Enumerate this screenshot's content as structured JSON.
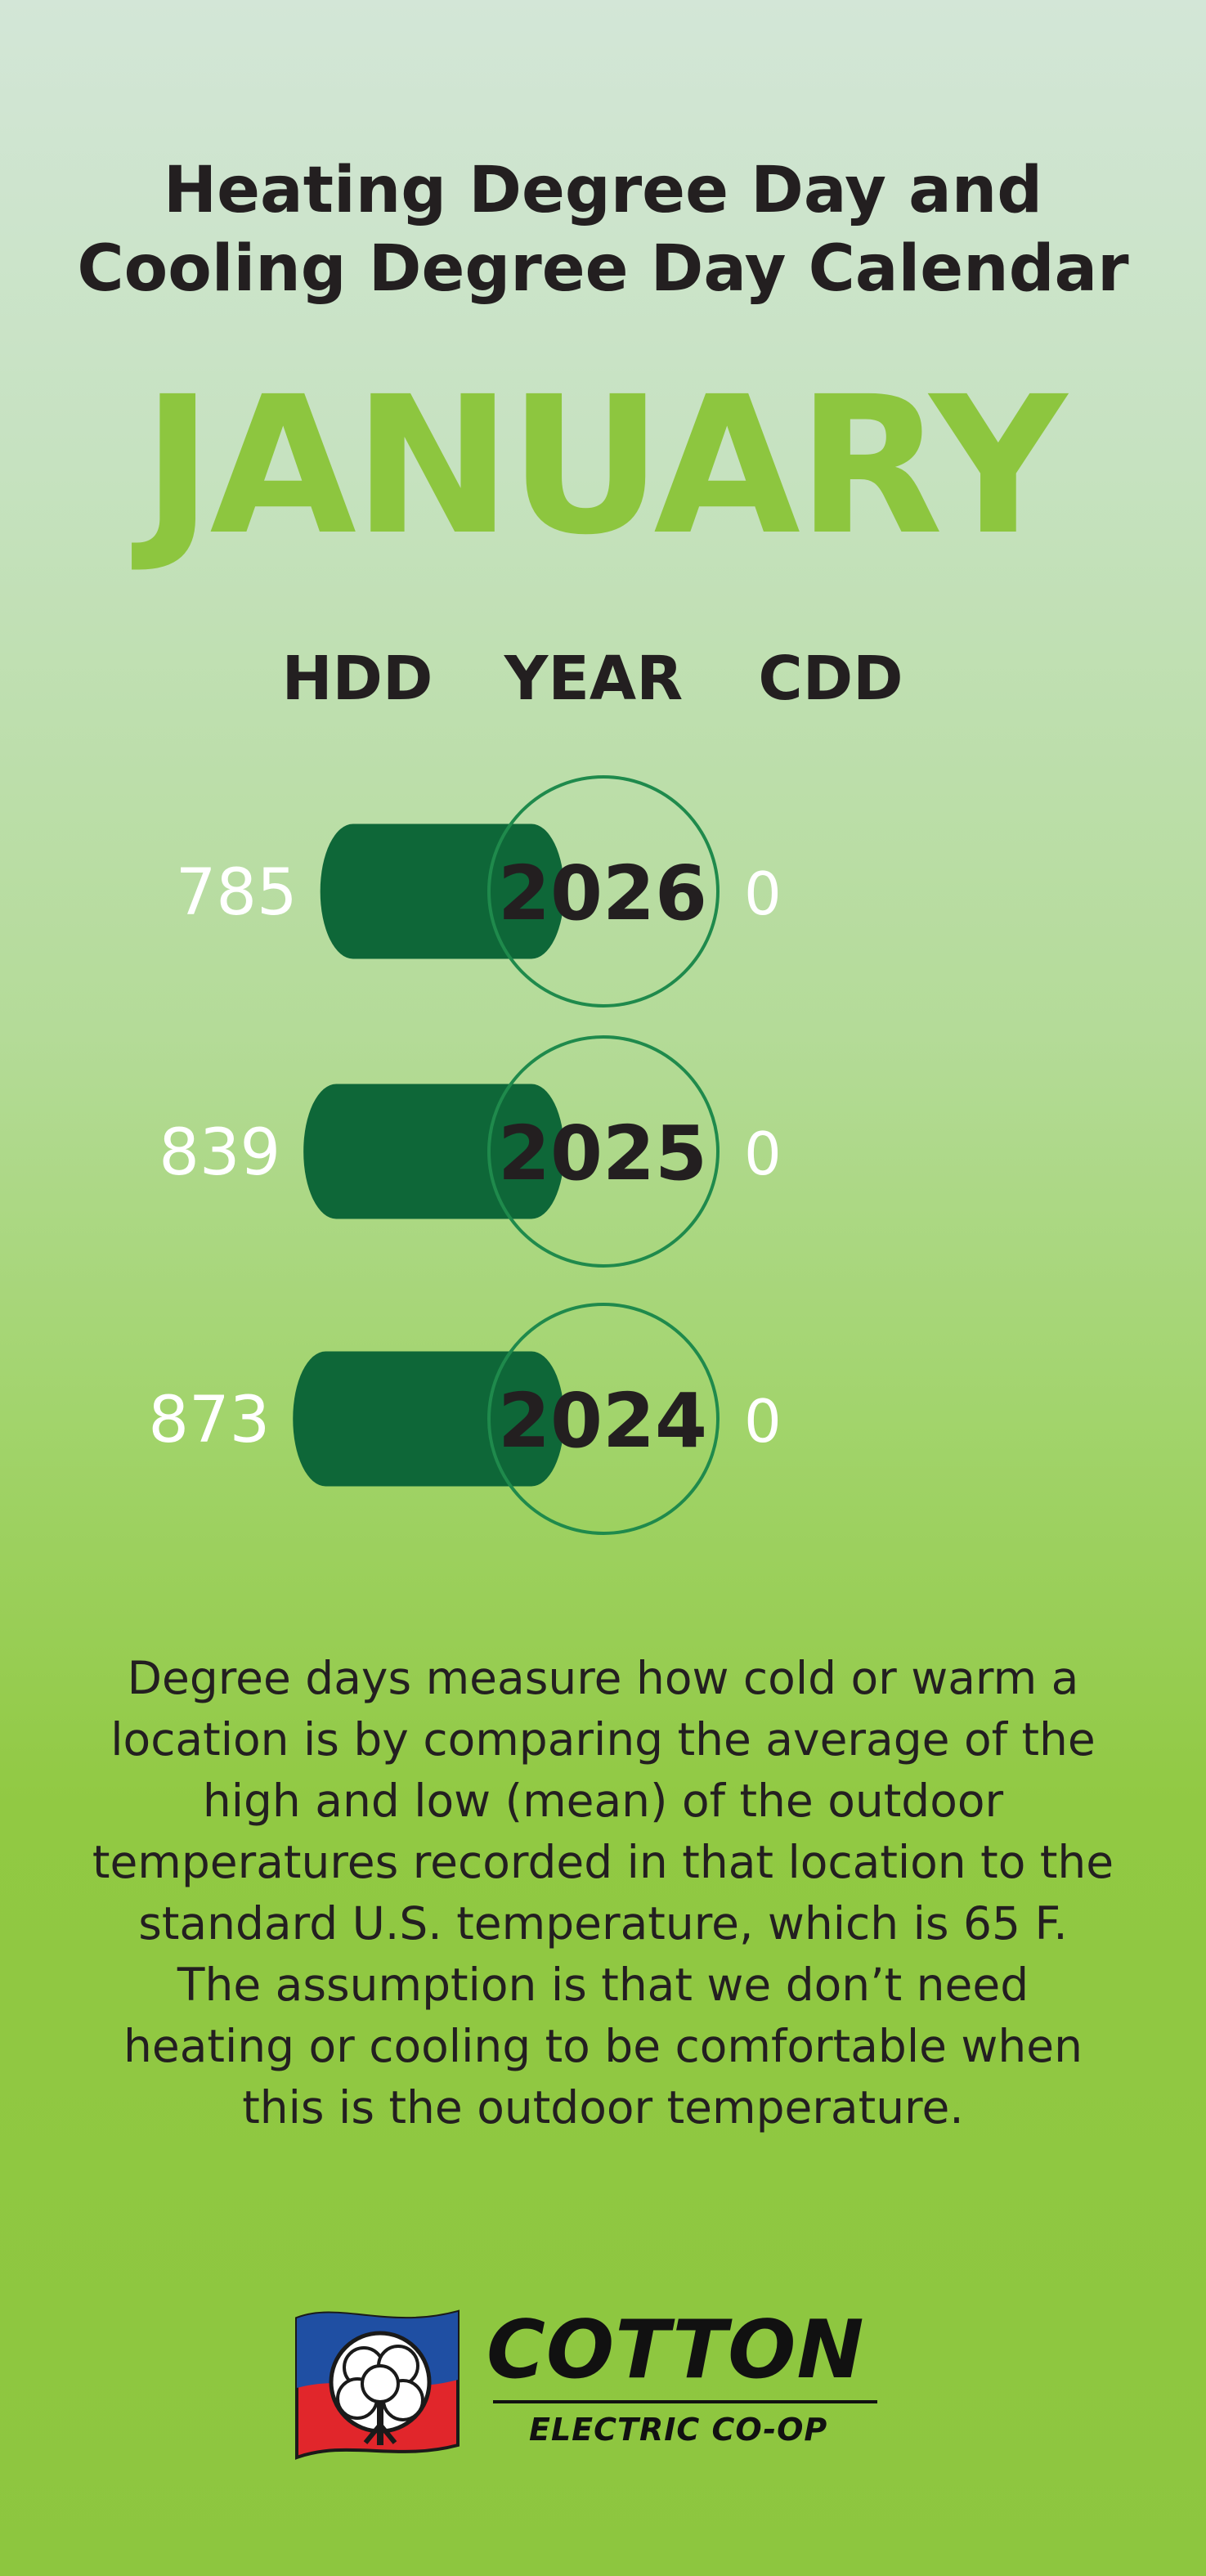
{
  "header": {
    "title_line1": "Heating Degree Day and",
    "title_line2": "Cooling Degree Day Calendar",
    "month": "JANUARY"
  },
  "columns": {
    "hdd": "HDD",
    "year": "YEAR",
    "cdd": "CDD"
  },
  "chart_data": {
    "type": "bar",
    "orientation": "horizontal",
    "categories": [
      "2026",
      "2025",
      "2024"
    ],
    "series": [
      {
        "name": "HDD",
        "values": [
          785,
          839,
          873
        ]
      },
      {
        "name": "CDD",
        "values": [
          0,
          0,
          0
        ]
      }
    ],
    "colors": {
      "bar": "#0e6738",
      "bubble_border": "#1f8a4c",
      "value_text": "#ffffff",
      "year_text": "#231f20"
    }
  },
  "description": "Degree days measure how cold or warm a location is by comparing the average of the high and low (mean) of the outdoor temperatures recorded in that location to the standard U.S. temperature, which is 65 F. The assumption is that we don’t need heating or cooling to be comfortable when this is the outdoor temperature.",
  "logo": {
    "name": "COTTON",
    "subtitle": "ELECTRIC CO-OP"
  },
  "colors": {
    "accent": "#8dc63f",
    "text": "#231f20"
  }
}
